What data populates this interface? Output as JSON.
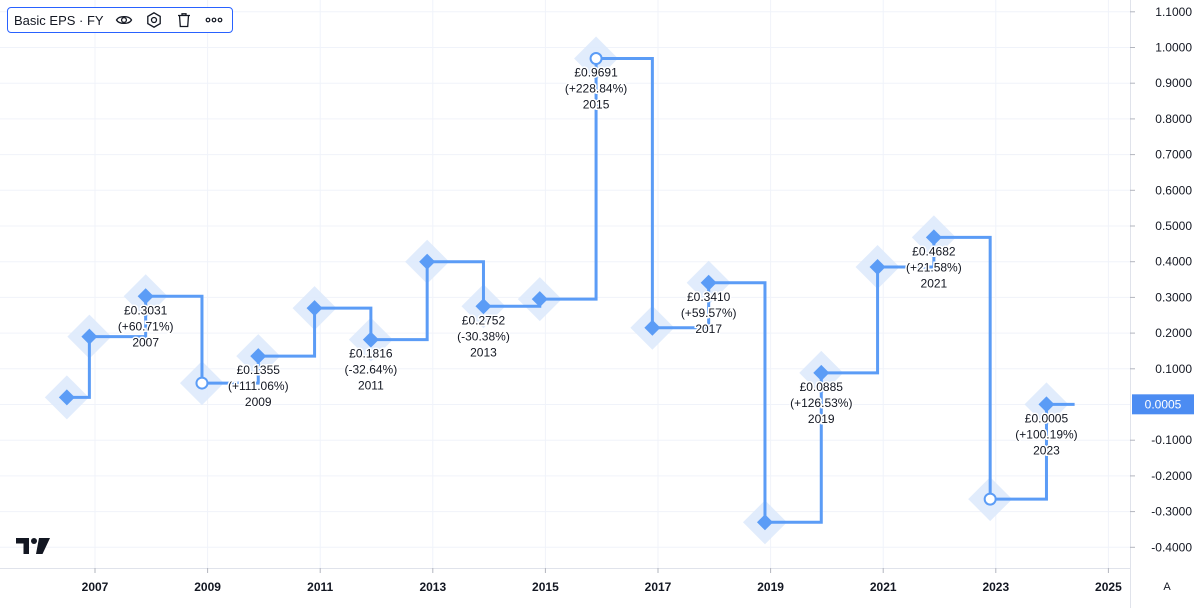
{
  "legend": {
    "title": "Basic EPS · FY"
  },
  "icons": {
    "visibility": "eye-icon",
    "settings": "settings-icon",
    "delete": "trash-icon",
    "more": "more-icon",
    "logo": "tradingview-logo",
    "scale": "auto-scale-icon"
  },
  "axis": {
    "auto_label": "A"
  },
  "colors": {
    "line": "#5b9cf6",
    "halo": "#dce9fc",
    "current_tag": "#4c8cf2",
    "text": "#131722"
  },
  "chart_data": {
    "type": "line",
    "step": true,
    "x_ticks": [
      "2007",
      "2009",
      "2011",
      "2013",
      "2015",
      "2017",
      "2019",
      "2021",
      "2023",
      "2025"
    ],
    "y_ticks": [
      "1.1000",
      "1.0000",
      "0.9000",
      "0.8000",
      "0.7000",
      "0.6000",
      "0.5000",
      "0.4000",
      "0.3000",
      "0.2000",
      "0.1000",
      "-0.1000",
      "-0.2000",
      "-0.3000",
      "-0.4000"
    ],
    "ylim": [
      -0.43,
      1.12
    ],
    "grid": true,
    "series": [
      {
        "values": [
          {
            "x": 2006.5,
            "y": 0.02
          },
          {
            "x": 2006.9,
            "y": 0.19
          },
          {
            "x": 2007.9,
            "y": 0.3031
          },
          {
            "x": 2008.9,
            "y": 0.06
          },
          {
            "x": 2009.9,
            "y": 0.1355
          },
          {
            "x": 2010.9,
            "y": 0.27
          },
          {
            "x": 2011.9,
            "y": 0.1816
          },
          {
            "x": 2012.9,
            "y": 0.4
          },
          {
            "x": 2013.9,
            "y": 0.2752
          },
          {
            "x": 2014.9,
            "y": 0.295
          },
          {
            "x": 2015.9,
            "y": 0.9691
          },
          {
            "x": 2016.9,
            "y": 0.215
          },
          {
            "x": 2017.9,
            "y": 0.341
          },
          {
            "x": 2018.9,
            "y": -0.33
          },
          {
            "x": 2019.9,
            "y": 0.0885
          },
          {
            "x": 2020.9,
            "y": 0.385
          },
          {
            "x": 2021.9,
            "y": 0.4682
          },
          {
            "x": 2022.9,
            "y": -0.265
          },
          {
            "x": 2023.9,
            "y": 0.0005
          }
        ],
        "end_x": 2024.4,
        "hollow": [
          2008.9,
          2015.9,
          2022.9
        ]
      }
    ],
    "labels": [
      {
        "x": 2007.9,
        "y": 0.3031,
        "lines": [
          "£0.3031",
          "(+60.71%)",
          "2007"
        ]
      },
      {
        "x": 2009.9,
        "y": 0.1355,
        "lines": [
          "£0.1355",
          "(+111.06%)",
          "2009"
        ]
      },
      {
        "x": 2011.9,
        "y": 0.1816,
        "lines": [
          "£0.1816",
          "(-32.64%)",
          "2011"
        ]
      },
      {
        "x": 2013.9,
        "y": 0.2752,
        "lines": [
          "£0.2752",
          "(-30.38%)",
          "2013"
        ]
      },
      {
        "x": 2015.9,
        "y": 0.9691,
        "lines": [
          "£0.9691",
          "(+228.84%)",
          "2015"
        ]
      },
      {
        "x": 2017.9,
        "y": 0.341,
        "lines": [
          "£0.3410",
          "(+59.57%)",
          "2017"
        ]
      },
      {
        "x": 2019.9,
        "y": 0.0885,
        "lines": [
          "£0.0885",
          "(+126.53%)",
          "2019"
        ]
      },
      {
        "x": 2021.9,
        "y": 0.4682,
        "lines": [
          "£0.4682",
          "(+21.58%)",
          "2021"
        ]
      },
      {
        "x": 2023.9,
        "y": 0.0005,
        "lines": [
          "£0.0005",
          "(+100.19%)",
          "2023"
        ]
      }
    ],
    "current_value": {
      "label": "0.0005",
      "y": 0.0005
    }
  }
}
